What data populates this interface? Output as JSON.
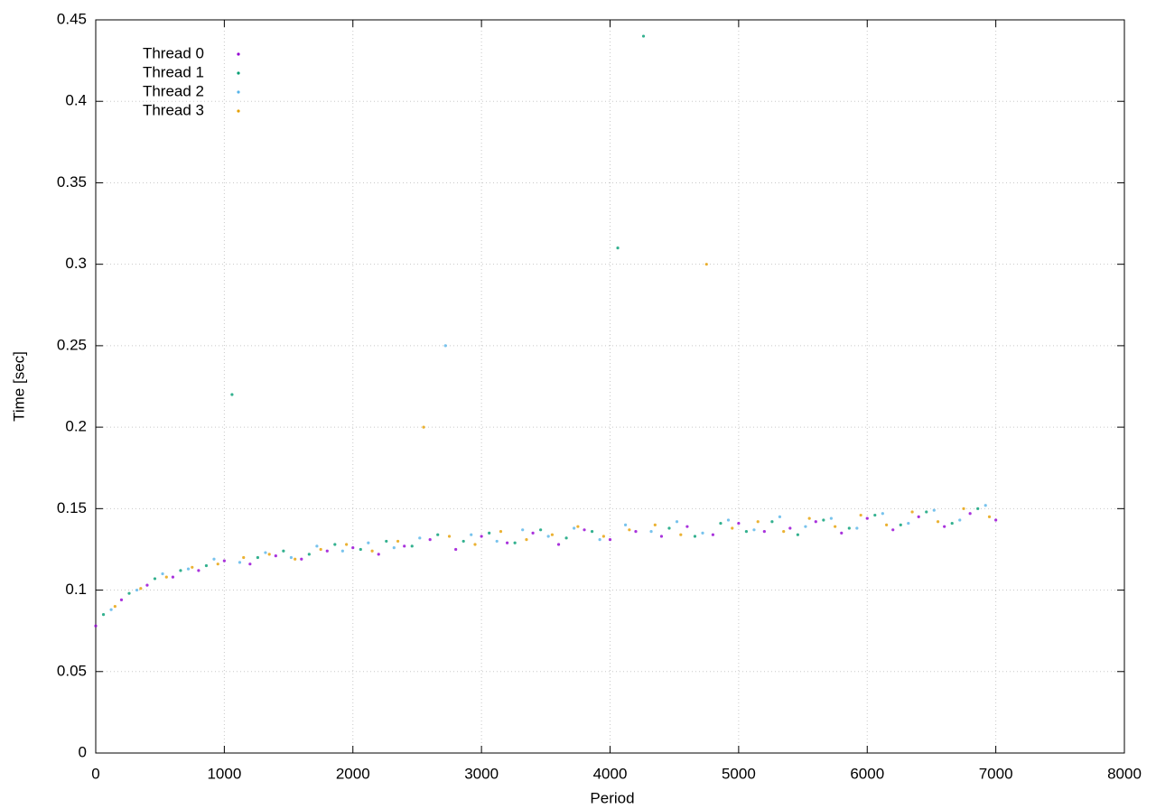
{
  "chart_data": {
    "type": "scatter",
    "xlabel": "Period",
    "ylabel": "Time [sec]",
    "xlim": [
      0,
      8000
    ],
    "ylim": [
      0,
      0.45
    ],
    "xticks": [
      0,
      1000,
      2000,
      3000,
      4000,
      5000,
      6000,
      7000,
      8000
    ],
    "yticks": [
      0,
      0.05,
      0.1,
      0.15,
      0.2,
      0.25,
      0.3,
      0.35,
      0.4,
      0.45
    ],
    "grid": true,
    "legend": "top-left",
    "series": [
      {
        "name": "Thread 0",
        "color": "#9400d3",
        "x": [
          0,
          200,
          400,
          600,
          800,
          1000,
          1200,
          1400,
          1600,
          1800,
          2000,
          2200,
          2400,
          2600,
          2800,
          3000,
          3200,
          3400,
          3600,
          3800,
          4000,
          4200,
          4400,
          4600,
          4800,
          5000,
          5200,
          5400,
          5600,
          5800,
          6000,
          6200,
          6400,
          6600,
          6800,
          7000
        ],
        "values": [
          0.078,
          0.094,
          0.103,
          0.108,
          0.112,
          0.118,
          0.116,
          0.121,
          0.119,
          0.124,
          0.126,
          0.122,
          0.127,
          0.131,
          0.125,
          0.133,
          0.129,
          0.135,
          0.128,
          0.137,
          0.131,
          0.136,
          0.133,
          0.139,
          0.134,
          0.141,
          0.136,
          0.138,
          0.142,
          0.135,
          0.144,
          0.137,
          0.145,
          0.139,
          0.147,
          0.143
        ]
      },
      {
        "name": "Thread 1",
        "color": "#009e73",
        "x": [
          60,
          260,
          460,
          660,
          860,
          1060,
          1260,
          1460,
          1660,
          1860,
          2060,
          2260,
          2460,
          2660,
          2860,
          3060,
          3260,
          3460,
          3660,
          3860,
          4060,
          4260,
          4460,
          4660,
          4860,
          5060,
          5260,
          5460,
          5660,
          5860,
          6060,
          6260,
          6460,
          6660,
          6860
        ],
        "values": [
          0.085,
          0.098,
          0.107,
          0.112,
          0.115,
          0.22,
          0.12,
          0.124,
          0.122,
          0.128,
          0.125,
          0.13,
          0.127,
          0.134,
          0.13,
          0.135,
          0.129,
          0.137,
          0.132,
          0.136,
          0.31,
          0.44,
          0.138,
          0.133,
          0.141,
          0.136,
          0.142,
          0.134,
          0.143,
          0.138,
          0.146,
          0.14,
          0.148,
          0.141,
          0.15
        ]
      },
      {
        "name": "Thread 2",
        "color": "#56b4e9",
        "x": [
          120,
          320,
          520,
          720,
          920,
          1120,
          1320,
          1520,
          1720,
          1920,
          2120,
          2320,
          2520,
          2720,
          2920,
          3120,
          3320,
          3520,
          3720,
          3920,
          4120,
          4320,
          4520,
          4720,
          4920,
          5120,
          5320,
          5520,
          5720,
          5920,
          6120,
          6320,
          6520,
          6720,
          6920
        ],
        "values": [
          0.088,
          0.1,
          0.11,
          0.113,
          0.119,
          0.117,
          0.123,
          0.12,
          0.127,
          0.124,
          0.129,
          0.126,
          0.132,
          0.25,
          0.134,
          0.13,
          0.137,
          0.133,
          0.138,
          0.131,
          0.14,
          0.136,
          0.142,
          0.135,
          0.143,
          0.137,
          0.145,
          0.139,
          0.144,
          0.138,
          0.147,
          0.141,
          0.149,
          0.143,
          0.152
        ]
      },
      {
        "name": "Thread 3",
        "color": "#e69f00",
        "x": [
          150,
          350,
          550,
          750,
          950,
          1150,
          1350,
          1550,
          1750,
          1950,
          2150,
          2350,
          2550,
          2750,
          2950,
          3150,
          3350,
          3550,
          3750,
          3950,
          4150,
          4350,
          4550,
          4750,
          4950,
          5150,
          5350,
          5550,
          5750,
          5950,
          6150,
          6350,
          6550,
          6750,
          6950
        ],
        "values": [
          0.09,
          0.101,
          0.108,
          0.114,
          0.116,
          0.12,
          0.122,
          0.119,
          0.125,
          0.128,
          0.124,
          0.13,
          0.2,
          0.133,
          0.128,
          0.136,
          0.131,
          0.134,
          0.139,
          0.133,
          0.137,
          0.14,
          0.134,
          0.3,
          0.138,
          0.142,
          0.136,
          0.144,
          0.139,
          0.146,
          0.14,
          0.148,
          0.142,
          0.15,
          0.145
        ]
      }
    ]
  }
}
